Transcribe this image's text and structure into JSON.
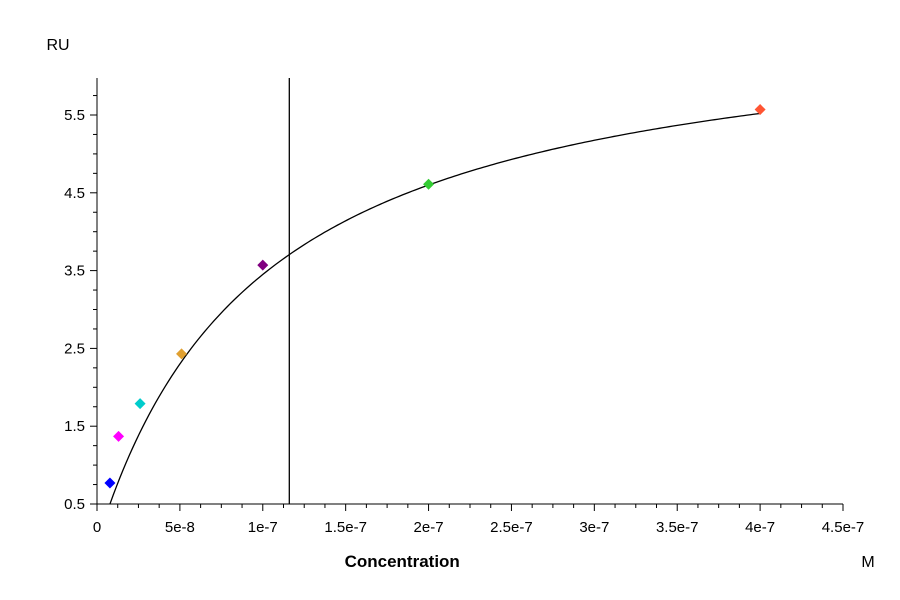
{
  "chart_data": {
    "type": "scatter",
    "xlabel": "Concentration",
    "x_unit": "M",
    "y_unit": "RU",
    "xlim": [
      0,
      4.5e-07
    ],
    "ylim": [
      0.5,
      6.0
    ],
    "x_ticks": [
      0,
      5e-08,
      1e-07,
      1.5e-07,
      2e-07,
      2.5e-07,
      3e-07,
      3.5e-07,
      4e-07,
      4.5e-07
    ],
    "x_tick_labels": [
      "0",
      "5e-8",
      "1e-7",
      "1.5e-7",
      "2e-7",
      "2.5e-7",
      "3e-7",
      "3.5e-7",
      "4e-7",
      "4.5e-7"
    ],
    "y_ticks": [
      0.5,
      1.5,
      2.5,
      3.5,
      4.5,
      5.5
    ],
    "y_tick_labels": [
      "0.5",
      "1.5",
      "2.5",
      "3.5",
      "4.5",
      "5.5"
    ],
    "points": [
      {
        "x": 7.8e-09,
        "y": 0.77,
        "color": "#0000ff"
      },
      {
        "x": 1.3e-08,
        "y": 1.37,
        "color": "#ff00ff"
      },
      {
        "x": 2.6e-08,
        "y": 1.79,
        "color": "#00cccc"
      },
      {
        "x": 5.1e-08,
        "y": 2.43,
        "color": "#e0a030"
      },
      {
        "x": 1e-07,
        "y": 3.57,
        "color": "#800080"
      },
      {
        "x": 2e-07,
        "y": 4.61,
        "color": "#33cc33"
      },
      {
        "x": 4e-07,
        "y": 5.57,
        "color": "#ff5533"
      }
    ],
    "fit_curve": {
      "model": "Rmax*x/(KD+x)",
      "Rmax": 6.9,
      "KD": 1e-07,
      "x_start": 7.8e-09,
      "x_end": 4e-07,
      "color": "#000000"
    },
    "vertical_marker": {
      "x": 1.16e-07,
      "color": "#000000"
    },
    "grid": false,
    "legend": "none"
  }
}
